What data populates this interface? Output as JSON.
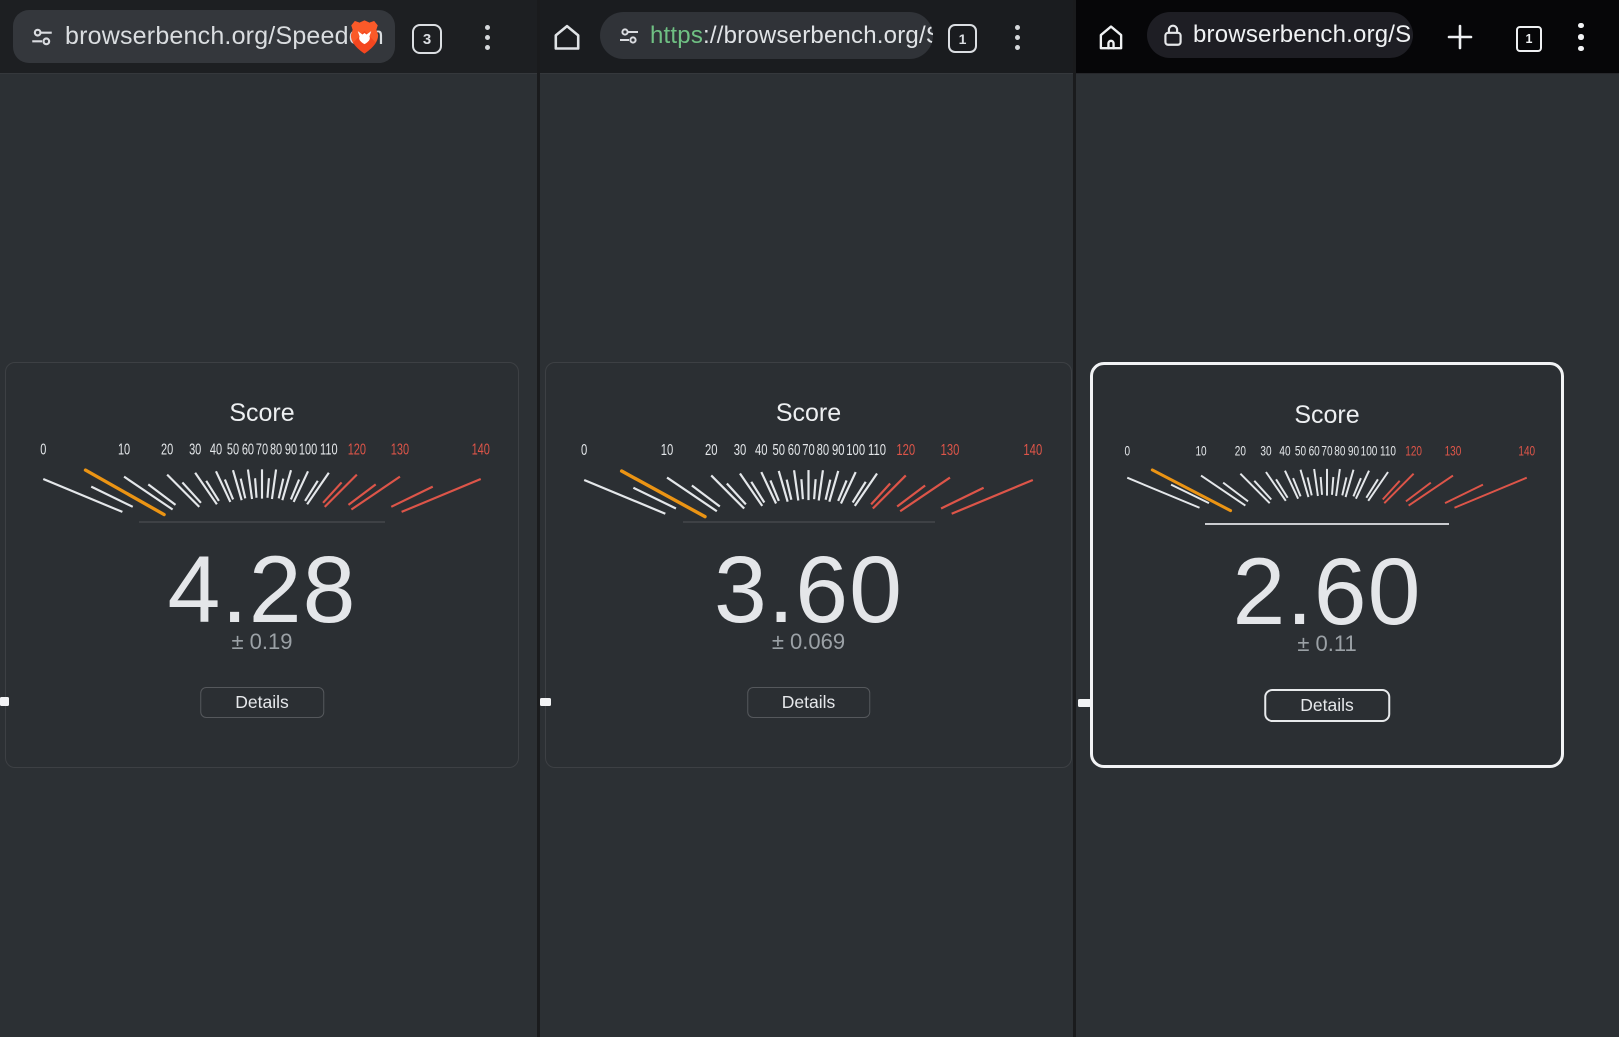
{
  "app_description": "Speedometer benchmark score cards shown in three Android browser windows",
  "page_bg": "#2c3034",
  "gauge": {
    "min": 0,
    "max": 140,
    "tick_step": 5,
    "label_step": 10,
    "red_ticks_from": 115,
    "red_labels_from": 120,
    "tick_color": "#e4e7ea",
    "red_color": "#dd5549",
    "needle_color": "#eb9414",
    "label_color": "#e4e7ea"
  },
  "chart_data": [
    {
      "type": "gauge",
      "title": "Score",
      "value": 4.28,
      "error_value": 0.19,
      "range": [
        0,
        140
      ],
      "tick_labels": [
        0,
        10,
        20,
        30,
        40,
        50,
        60,
        70,
        80,
        90,
        100,
        110,
        120,
        130,
        140
      ]
    },
    {
      "type": "gauge",
      "title": "Score",
      "value": 3.6,
      "error_value": 0.069,
      "range": [
        0,
        140
      ],
      "tick_labels": [
        0,
        10,
        20,
        30,
        40,
        50,
        60,
        70,
        80,
        90,
        100,
        110,
        120,
        130,
        140
      ]
    },
    {
      "type": "gauge",
      "title": "Score",
      "value": 2.6,
      "error_value": 0.11,
      "range": [
        0,
        140
      ],
      "tick_labels": [
        0,
        10,
        20,
        30,
        40,
        50,
        60,
        70,
        80,
        90,
        100,
        110,
        120,
        130,
        140
      ]
    }
  ],
  "panels": [
    {
      "browser": "brave",
      "toolbar": {
        "url": "browserbench.org/Speedom",
        "tab_count": "3",
        "icons": [
          "tune-icon",
          "brave-shields-icon",
          "tab-counter",
          "menu-icon"
        ]
      },
      "card": {
        "title": "Score",
        "score": "4.28",
        "error": "± 0.19",
        "details_label": "Details",
        "highlighted": false
      }
    },
    {
      "browser": "chrome",
      "toolbar": {
        "url_scheme": "https",
        "url_rest": "://browserbench.org/Spe",
        "tab_count": "1",
        "icons": [
          "home-icon",
          "tune-icon",
          "tab-counter",
          "menu-icon"
        ]
      },
      "card": {
        "title": "Score",
        "score": "3.60",
        "error": "± 0.069",
        "details_label": "Details",
        "highlighted": false
      }
    },
    {
      "browser": "firefox",
      "toolbar": {
        "url": "browserbench.org/Sp",
        "tab_count": "1",
        "icons": [
          "home-icon",
          "lock-icon",
          "plus-icon",
          "tab-counter",
          "menu-icon"
        ]
      },
      "card": {
        "title": "Score",
        "score": "2.60",
        "error": "± 0.11",
        "details_label": "Details",
        "highlighted": true
      }
    }
  ]
}
